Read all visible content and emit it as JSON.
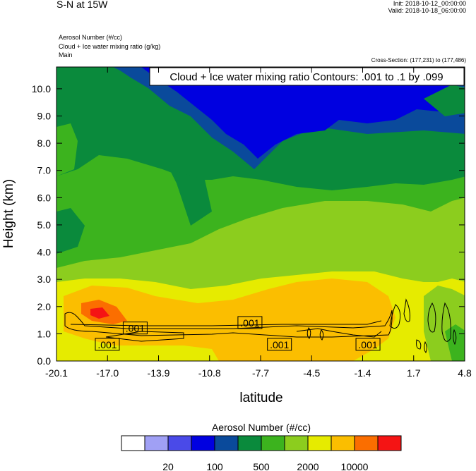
{
  "header": {
    "title": "S-N at 15W",
    "init": "Init: 2018-10-12_00:00:00",
    "valid": "Valid: 2018-10-18_06:00:00",
    "var1": "Aerosol Number   (#/cc)",
    "var2": "Cloud + Ice water mixing ratio   (g/kg)",
    "var3": "Main",
    "cross_section": "Cross-Section: (177,231) to (177,486)"
  },
  "chart_data": {
    "type": "heatmap",
    "title": "Cloud + Ice water mixing ratio Contours: .001 to .1 by .099",
    "xlabel": "latitude",
    "ylabel": "Height (km)",
    "x_ticks": [
      "-20.1",
      "-17.0",
      "-13.9",
      "-10.8",
      "-7.7",
      "-4.5",
      "-1.4",
      "1.7",
      "4.8"
    ],
    "y_ticks": [
      "0.0",
      "1.0",
      "2.0",
      "3.0",
      "4.0",
      "5.0",
      "6.0",
      "7.0",
      "8.0",
      "9.0",
      "10.0"
    ],
    "xlim": [
      -20.1,
      4.8
    ],
    "ylim": [
      0,
      10.8
    ],
    "contour_labels": [
      {
        "text": ".001",
        "x": -15.3,
        "y": 1.2
      },
      {
        "text": ".001",
        "x": -17.0,
        "y": 0.6
      },
      {
        "text": ".001",
        "x": -8.3,
        "y": 1.4
      },
      {
        "text": ".001",
        "x": -6.5,
        "y": 0.6
      },
      {
        "text": ".001",
        "x": -1.1,
        "y": 0.6
      }
    ],
    "colorbar": {
      "title": "Aerosol Number  (#/cc)",
      "colors": [
        "#ffffff",
        "#a0a0f5",
        "#4a4ae8",
        "#0000e0",
        "#0a4a9b",
        "#0a8a3c",
        "#3cb31e",
        "#8ccd1e",
        "#e6eb00",
        "#fbbe00",
        "#fb6e00",
        "#f51414"
      ],
      "labels": [
        "20",
        "100",
        "500",
        "2000",
        "10000"
      ]
    }
  }
}
